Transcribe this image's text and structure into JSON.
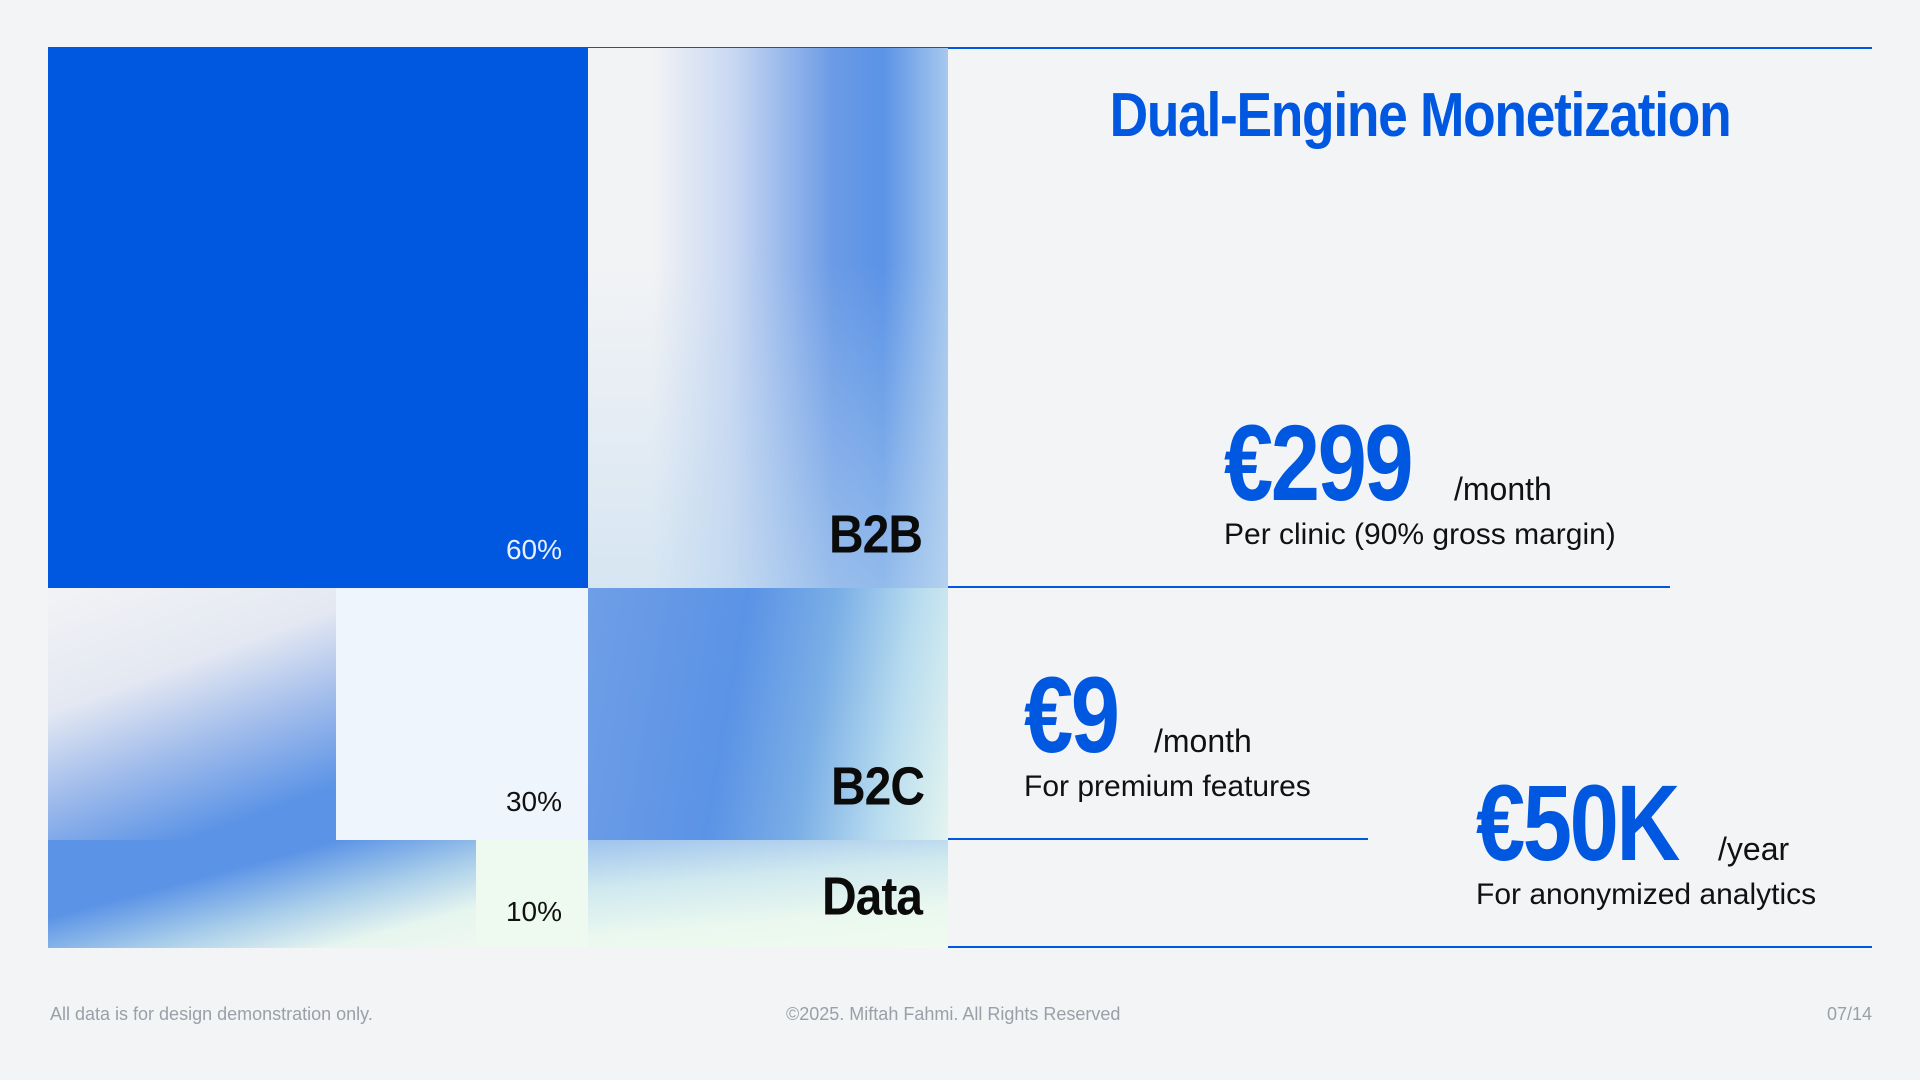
{
  "slide": {
    "title": "Dual-Engine Monetization",
    "page_indicator": "07/14"
  },
  "colors": {
    "accent": "#0057e0",
    "background": "#f2f4f6",
    "text": "#111111",
    "muted": "#9aa0a8"
  },
  "segments": [
    {
      "name": "B2B",
      "share": "60%",
      "share_value": 60
    },
    {
      "name": "B2C",
      "share": "30%",
      "share_value": 30
    },
    {
      "name": "Data",
      "share": "10%",
      "share_value": 10
    }
  ],
  "pricing": {
    "b2b": {
      "price": "€299",
      "period": "/month",
      "description": "Per clinic (90% gross margin)"
    },
    "b2c": {
      "price": "€9",
      "period": "/month",
      "description": "For premium features"
    },
    "data": {
      "price": "€50K",
      "period": "/year",
      "description": "For anonymized analytics"
    }
  },
  "footer": {
    "disclaimer": "All data is for design demonstration only.",
    "copyright": "©2025. Miftah Fahmi. All Rights Reserved"
  }
}
